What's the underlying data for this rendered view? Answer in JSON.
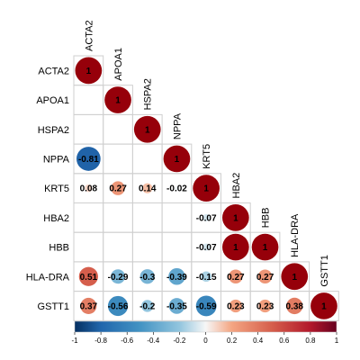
{
  "chart_data": {
    "type": "heatmap",
    "variables": [
      "ACTA2",
      "APOA1",
      "HSPA2",
      "NPPA",
      "KRT5",
      "HBA2",
      "HBB",
      "HLA-DRA",
      "GSTT1"
    ],
    "matrix": [
      [
        1,
        null,
        null,
        null,
        null,
        null,
        null,
        null,
        null
      ],
      [
        null,
        1,
        null,
        null,
        null,
        null,
        null,
        null,
        null
      ],
      [
        null,
        null,
        1,
        null,
        null,
        null,
        null,
        null,
        null
      ],
      [
        -0.81,
        null,
        null,
        1,
        null,
        null,
        null,
        null,
        null
      ],
      [
        0.08,
        0.27,
        0.14,
        -0.02,
        1,
        null,
        null,
        null,
        null
      ],
      [
        null,
        null,
        null,
        null,
        -0.07,
        1,
        null,
        null,
        null
      ],
      [
        null,
        null,
        null,
        null,
        -0.07,
        1,
        1,
        null,
        null
      ],
      [
        0.51,
        -0.29,
        -0.3,
        -0.39,
        -0.15,
        0.27,
        0.27,
        1,
        null
      ],
      [
        0.37,
        -0.56,
        -0.2,
        -0.35,
        -0.59,
        0.23,
        0.23,
        0.38,
        1
      ]
    ],
    "colorbar": {
      "ticks": [
        "-1",
        "-0.8",
        "-0.6",
        "-0.4",
        "-0.2",
        "0",
        "0.2",
        "0.4",
        "0.6",
        "0.8",
        "1"
      ],
      "range": [
        -1,
        1
      ],
      "colors": [
        "#2166AC",
        "#F7F7F7",
        "#B2182B"
      ]
    },
    "x_labels_rotated": true,
    "display": "circle-and-number, lower triangle"
  }
}
